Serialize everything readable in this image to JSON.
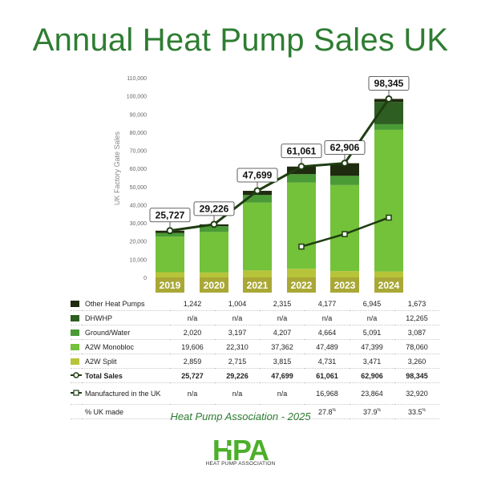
{
  "title": "Annual Heat Pump Sales UK",
  "source": "Heat Pump Association - 2025",
  "logo": {
    "text": "HPA",
    "subtitle": "HEAT PUMP ASSOCIATION"
  },
  "colors": {
    "title": "#2e7d32",
    "other_heat_pumps": "#1f2b0f",
    "dhwhp": "#2e5e22",
    "ground_water": "#4a9a35",
    "a2w_monobloc": "#73c23a",
    "a2w_split": "#b7c43a",
    "total_line": "#1f3d12",
    "year_band": "#a9a836"
  },
  "chart_data": {
    "type": "bar",
    "stacked": true,
    "categories": [
      "2019",
      "2020",
      "2021",
      "2022",
      "2023",
      "2024"
    ],
    "ylabel": "UK Factory Gate Sales",
    "ylim": [
      0,
      110000
    ],
    "yticks": [
      0,
      10000,
      20000,
      30000,
      40000,
      50000,
      60000,
      70000,
      80000,
      90000,
      100000,
      110000
    ],
    "ytick_labels": [
      "0",
      "10,000",
      "20,000",
      "30,000",
      "40,000",
      "50,000",
      "60,000",
      "70,000",
      "80,000",
      "90,000",
      "100,000",
      "110,000"
    ],
    "grid": false,
    "series": [
      {
        "name": "A2W Split",
        "key": "a2w_split",
        "values": [
          2859,
          2715,
          3815,
          4731,
          3471,
          3260
        ],
        "labels": [
          "2,859",
          "2,715",
          "3,815",
          "4,731",
          "3,471",
          "3,260"
        ]
      },
      {
        "name": "A2W Monobloc",
        "key": "a2w_monobloc",
        "values": [
          19606,
          22310,
          37362,
          47489,
          47399,
          78060
        ],
        "labels": [
          "19,606",
          "22,310",
          "37,362",
          "47,489",
          "47,399",
          "78,060"
        ]
      },
      {
        "name": "Ground/Water",
        "key": "ground_water",
        "values": [
          2020,
          3197,
          4207,
          4664,
          5091,
          3087
        ],
        "labels": [
          "2,020",
          "3,197",
          "4,207",
          "4,664",
          "5,091",
          "3,087"
        ]
      },
      {
        "name": "DHWHP",
        "key": "dhwhp",
        "values": [
          0,
          0,
          0,
          0,
          0,
          12265
        ],
        "labels": [
          "n/a",
          "n/a",
          "n/a",
          "n/a",
          "n/a",
          "12,265"
        ]
      },
      {
        "name": "Other Heat Pumps",
        "key": "other_heat_pumps",
        "values": [
          1242,
          1004,
          2315,
          4177,
          6945,
          1673
        ],
        "labels": [
          "1,242",
          "1,004",
          "2,315",
          "4,177",
          "6,945",
          "1,673"
        ]
      }
    ],
    "total_sales": {
      "name": "Total Sales",
      "values": [
        25727,
        29226,
        47699,
        61061,
        62906,
        98345
      ],
      "labels": [
        "25,727",
        "29,226",
        "47,699",
        "61,061",
        "62,906",
        "98,345"
      ]
    },
    "manufactured_uk": {
      "name": "Manufactured in the UK",
      "values": [
        null,
        null,
        null,
        16968,
        23864,
        32920
      ],
      "labels": [
        "n/a",
        "n/a",
        "n/a",
        "16,968",
        "23,864",
        "32,920"
      ]
    },
    "pct_uk_made": {
      "name": "% UK made",
      "labels": [
        "",
        "",
        "",
        "27.8",
        "37.9",
        "33.5"
      ],
      "suffix": "%"
    }
  }
}
